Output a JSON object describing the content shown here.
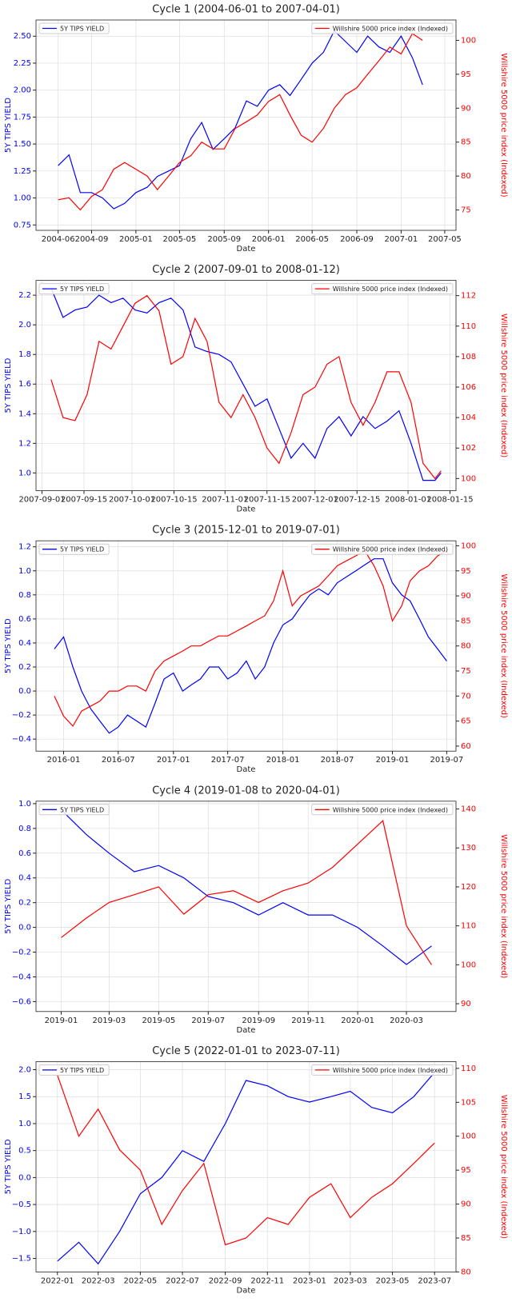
{
  "chart_data": [
    {
      "type": "line",
      "title": "Cycle 1 (2004-06-01 to 2007-04-01)",
      "x_label": "Date",
      "y_label": "5Y TIPS YIELD",
      "y2_label": "Willshire 5000 price index (Indexed)",
      "grid": true,
      "legend": "upper left",
      "y2_legend": "upper right",
      "x": [
        "2004-06",
        "2004-07",
        "2004-08",
        "2004-09",
        "2004-10",
        "2004-11",
        "2004-12",
        "2005-01",
        "2005-02",
        "2005-03",
        "2005-04",
        "2005-05",
        "2005-06",
        "2005-07",
        "2005-08",
        "2005-09",
        "2005-10",
        "2005-11",
        "2005-12",
        "2006-01",
        "2006-02",
        "2006-03",
        "2006-04",
        "2006-05",
        "2006-06",
        "2006-07",
        "2006-08",
        "2006-09",
        "2006-10",
        "2006-11",
        "2006-12",
        "2007-01",
        "2007-02",
        "2007-03"
      ],
      "xlim": [
        "2004-04",
        "2007-06"
      ],
      "xticks": [
        "2004-06",
        "2004-09",
        "2005-01",
        "2005-05",
        "2005-09",
        "2006-01",
        "2006-05",
        "2006-09",
        "2007-01",
        "2007-05"
      ],
      "ylim": [
        0.7,
        2.65
      ],
      "yticks": [
        0.75,
        {
          "value": 1,
          "label": "1.00"
        },
        1.25,
        {
          "value": 1.5,
          "label": "1.50"
        },
        1.75,
        {
          "value": 2,
          "label": "2.00"
        },
        2.25,
        {
          "value": 2.5,
          "label": "2.50"
        }
      ],
      "y2lim": [
        72,
        103
      ],
      "y2ticks": [
        75,
        80,
        85,
        90,
        95,
        100
      ],
      "series": [
        {
          "name": "5Y TIPS YIELD",
          "color": "#0000ff",
          "values": [
            1.3,
            1.4,
            1.05,
            1.05,
            1.0,
            0.9,
            0.95,
            1.05,
            1.1,
            1.2,
            1.25,
            1.3,
            1.55,
            1.7,
            1.45,
            1.55,
            1.65,
            1.9,
            1.85,
            2.0,
            2.05,
            1.95,
            2.1,
            2.25,
            2.35,
            2.55,
            2.45,
            2.35,
            2.5,
            2.4,
            2.35,
            2.5,
            2.3,
            2.05
          ]
        },
        {
          "name": "Willshire 5000 price index (Indexed)",
          "color": "#ff0000",
          "axis": "y2",
          "values": [
            76.5,
            76.8,
            75,
            77,
            78,
            81,
            82,
            81,
            80,
            78,
            80,
            82,
            83,
            85,
            84,
            84,
            87,
            88,
            89,
            91,
            92,
            89,
            86,
            85,
            87,
            90,
            92,
            93,
            95,
            97,
            99,
            98,
            101,
            100
          ]
        }
      ]
    },
    {
      "type": "line",
      "title": "Cycle 2 (2007-09-01 to 2008-01-12)",
      "x_label": "Date",
      "y_label": "5Y TIPS YIELD",
      "y2_label": "Willshire 5000 price index (Indexed)",
      "grid": true,
      "legend": "upper left",
      "y2_legend": "upper right",
      "x": [
        "2007-09-04",
        "2007-09-08",
        "2007-09-12",
        "2007-09-16",
        "2007-09-20",
        "2007-09-24",
        "2007-09-28",
        "2007-10-02",
        "2007-10-06",
        "2007-10-10",
        "2007-10-14",
        "2007-10-18",
        "2007-10-22",
        "2007-10-26",
        "2007-10-30",
        "2007-11-03",
        "2007-11-07",
        "2007-11-11",
        "2007-11-15",
        "2007-11-19",
        "2007-11-23",
        "2007-11-27",
        "2007-12-01",
        "2007-12-05",
        "2007-12-09",
        "2007-12-13",
        "2007-12-17",
        "2007-12-21",
        "2007-12-25",
        "2007-12-29",
        "2008-01-02",
        "2008-01-06",
        "2008-01-10",
        "2008-01-12"
      ],
      "xlim": [
        "2007-08-30",
        "2008-01-17"
      ],
      "xticks": [
        "2007-09-01",
        "2007-09-15",
        "2007-10-01",
        "2007-10-15",
        "2007-11-01",
        "2007-11-15",
        "2007-12-01",
        "2007-12-15",
        "2008-01-01",
        "2008-01-15"
      ],
      "ylim": [
        0.88,
        2.3
      ],
      "yticks": [
        {
          "value": 1,
          "label": "1.0"
        },
        1.2,
        1.4,
        1.6,
        1.8,
        {
          "value": 2,
          "label": "2.0"
        },
        2.2
      ],
      "y2lim": [
        99.2,
        113
      ],
      "y2ticks": [
        100,
        102,
        104,
        106,
        108,
        110,
        112
      ],
      "series": [
        {
          "name": "5Y TIPS YIELD",
          "color": "#0000ff",
          "values": [
            2.25,
            2.05,
            2.1,
            2.12,
            2.2,
            2.15,
            2.18,
            2.1,
            2.08,
            2.15,
            2.18,
            2.1,
            1.85,
            1.82,
            1.8,
            1.75,
            1.6,
            1.45,
            1.5,
            1.3,
            1.1,
            1.2,
            1.1,
            1.3,
            1.38,
            1.25,
            1.38,
            1.3,
            1.35,
            1.42,
            1.2,
            0.95,
            0.95,
            1.0
          ]
        },
        {
          "name": "Willshire 5000 price index (Indexed)",
          "color": "#ff0000",
          "axis": "y2",
          "values": [
            106.5,
            104,
            103.8,
            105.5,
            109,
            108.5,
            110,
            111.5,
            112,
            111,
            107.5,
            108,
            110.5,
            109,
            105,
            104,
            105.5,
            104,
            102,
            101,
            103,
            105.5,
            106,
            107.5,
            108,
            105,
            103.5,
            105,
            107,
            107,
            105,
            101,
            100,
            100.5
          ]
        }
      ]
    },
    {
      "type": "line",
      "title": "Cycle 3 (2015-12-01 to 2019-07-01)",
      "x_label": "Date",
      "y_label": "5Y TIPS YIELD",
      "y2_label": "Willshire 5000 price index (Indexed)",
      "grid": true,
      "legend": "upper left",
      "y2_legend": "upper right",
      "x": [
        "2015-12",
        "2016-01",
        "2016-02",
        "2016-03",
        "2016-04",
        "2016-05",
        "2016-06",
        "2016-07",
        "2016-08",
        "2016-09",
        "2016-10",
        "2016-11",
        "2016-12",
        "2017-01",
        "2017-02",
        "2017-03",
        "2017-04",
        "2017-05",
        "2017-06",
        "2017-07",
        "2017-08",
        "2017-09",
        "2017-10",
        "2017-11",
        "2017-12",
        "2018-01",
        "2018-02",
        "2018-03",
        "2018-04",
        "2018-05",
        "2018-06",
        "2018-07",
        "2018-08",
        "2018-09",
        "2018-10",
        "2018-11",
        "2018-12",
        "2019-01",
        "2019-02",
        "2019-03",
        "2019-04",
        "2019-05",
        "2019-06",
        "2019-07"
      ],
      "xlim": [
        "2015-10",
        "2019-08"
      ],
      "xticks": [
        "2016-01",
        "2016-07",
        "2017-01",
        "2017-07",
        "2018-01",
        "2018-07",
        "2019-01",
        "2019-07"
      ],
      "ylim": [
        -0.5,
        1.25
      ],
      "yticks": [
        {
          "value": -0.4,
          "label": "−0.4"
        },
        {
          "value": -0.2,
          "label": "−0.2"
        },
        {
          "value": 0,
          "label": "0.0"
        },
        0.2,
        0.4,
        0.6,
        0.8,
        {
          "value": 1,
          "label": "1.0"
        },
        1.2
      ],
      "y2lim": [
        59,
        101
      ],
      "y2ticks": [
        60,
        65,
        70,
        75,
        80,
        85,
        90,
        95,
        100
      ],
      "series": [
        {
          "name": "5Y TIPS YIELD",
          "color": "#0000ff",
          "values": [
            0.35,
            0.45,
            0.2,
            0.0,
            -0.15,
            -0.25,
            -0.35,
            -0.3,
            -0.2,
            -0.25,
            -0.3,
            -0.1,
            0.1,
            0.15,
            0.0,
            0.05,
            0.1,
            0.2,
            0.2,
            0.1,
            0.15,
            0.25,
            0.1,
            0.2,
            0.4,
            0.55,
            0.6,
            0.7,
            0.8,
            0.85,
            0.8,
            0.9,
            0.95,
            1.0,
            1.05,
            1.1,
            1.1,
            0.9,
            0.8,
            0.75,
            0.6,
            0.45,
            0.35,
            0.25
          ]
        },
        {
          "name": "Willshire 5000 price index (Indexed)",
          "color": "#ff0000",
          "axis": "y2",
          "values": [
            70,
            66,
            64,
            67,
            68,
            69,
            71,
            71,
            72,
            72,
            71,
            75,
            77,
            78,
            79,
            80,
            80,
            81,
            82,
            82,
            83,
            84,
            85,
            86,
            89,
            95,
            88,
            90,
            91,
            92,
            94,
            96,
            97,
            98,
            99,
            96,
            92,
            85,
            88,
            93,
            95,
            96,
            98,
            99
          ]
        }
      ]
    },
    {
      "type": "line",
      "title": "Cycle 4 (2019-01-08 to 2020-04-01)",
      "x_label": "Date",
      "y_label": "5Y TIPS YIELD",
      "y2_label": "Willshire 5000 price index (Indexed)",
      "grid": true,
      "legend": "upper left",
      "y2_legend": "upper right",
      "x": [
        "2019-01",
        "2019-02",
        "2019-03",
        "2019-04",
        "2019-05",
        "2019-06",
        "2019-07",
        "2019-08",
        "2019-09",
        "2019-10",
        "2019-11",
        "2019-12",
        "2020-01",
        "2020-02",
        "2020-03",
        "2020-04"
      ],
      "xlim": [
        "2018-12",
        "2020-05"
      ],
      "xticks": [
        "2019-01",
        "2019-03",
        "2019-05",
        "2019-07",
        "2019-09",
        "2019-11",
        "2020-01",
        "2020-03"
      ],
      "ylim": [
        -0.68,
        1.02
      ],
      "yticks": [
        {
          "value": -0.6,
          "label": "−0.6"
        },
        {
          "value": -0.4,
          "label": "−0.4"
        },
        {
          "value": -0.2,
          "label": "−0.2"
        },
        {
          "value": 0,
          "label": "0.0"
        },
        0.2,
        0.4,
        0.6,
        0.8,
        {
          "value": 1,
          "label": "1.0"
        }
      ],
      "y2lim": [
        88,
        142
      ],
      "y2ticks": [
        90,
        100,
        110,
        120,
        130,
        140
      ],
      "series": [
        {
          "name": "5Y TIPS YIELD",
          "color": "#0000ff",
          "values": [
            0.95,
            0.75,
            0.6,
            0.45,
            0.5,
            0.4,
            0.25,
            0.2,
            0.1,
            0.2,
            0.1,
            0.1,
            0.0,
            -0.15,
            -0.3,
            -0.15
          ]
        },
        {
          "name": "Willshire 5000 price index (Indexed)",
          "color": "#ff0000",
          "axis": "y2",
          "values": [
            107,
            112,
            116,
            118,
            120,
            113,
            118,
            119,
            116,
            119,
            121,
            125,
            131,
            137,
            110,
            100
          ]
        }
      ]
    },
    {
      "type": "line",
      "title": "Cycle 5 (2022-01-01 to 2023-07-11)",
      "x_label": "Date",
      "y_label": "5Y TIPS YIELD",
      "y2_label": "Willshire 5000 price index (Indexed)",
      "grid": true,
      "legend": "upper left",
      "y2_legend": "upper right",
      "x": [
        "2022-01",
        "2022-02",
        "2022-03",
        "2022-04",
        "2022-05",
        "2022-06",
        "2022-07",
        "2022-08",
        "2022-09",
        "2022-10",
        "2022-11",
        "2022-12",
        "2023-01",
        "2023-02",
        "2023-03",
        "2023-04",
        "2023-05",
        "2023-06",
        "2023-07"
      ],
      "xlim": [
        "2021-12",
        "2023-08"
      ],
      "xticks": [
        "2022-01",
        "2022-03",
        "2022-05",
        "2022-07",
        "2022-09",
        "2022-11",
        "2023-01",
        "2023-03",
        "2023-05",
        "2023-07"
      ],
      "ylim": [
        -1.75,
        2.15
      ],
      "yticks": [
        {
          "value": -1.5,
          "label": "−1.5"
        },
        {
          "value": -1,
          "label": "−1.0"
        },
        {
          "value": -0.5,
          "label": "−0.5"
        },
        {
          "value": 0,
          "label": "0.0"
        },
        0.5,
        {
          "value": 1,
          "label": "1.0"
        },
        1.5,
        {
          "value": 2,
          "label": "2.0"
        }
      ],
      "y2lim": [
        80,
        111
      ],
      "y2ticks": [
        80,
        85,
        90,
        95,
        100,
        105,
        110
      ],
      "series": [
        {
          "name": "5Y TIPS YIELD",
          "color": "#0000ff",
          "values": [
            -1.55,
            -1.2,
            -1.6,
            -1.0,
            -0.3,
            0.0,
            0.5,
            0.3,
            1.0,
            1.8,
            1.7,
            1.5,
            1.4,
            1.5,
            1.6,
            1.3,
            1.2,
            1.5,
            1.95
          ]
        },
        {
          "name": "Willshire 5000 price index (Indexed)",
          "color": "#ff0000",
          "axis": "y2",
          "values": [
            109,
            100,
            104,
            98,
            95,
            87,
            92,
            96,
            84,
            85,
            88,
            87,
            91,
            93,
            88,
            91,
            93,
            96,
            99
          ]
        }
      ]
    }
  ]
}
